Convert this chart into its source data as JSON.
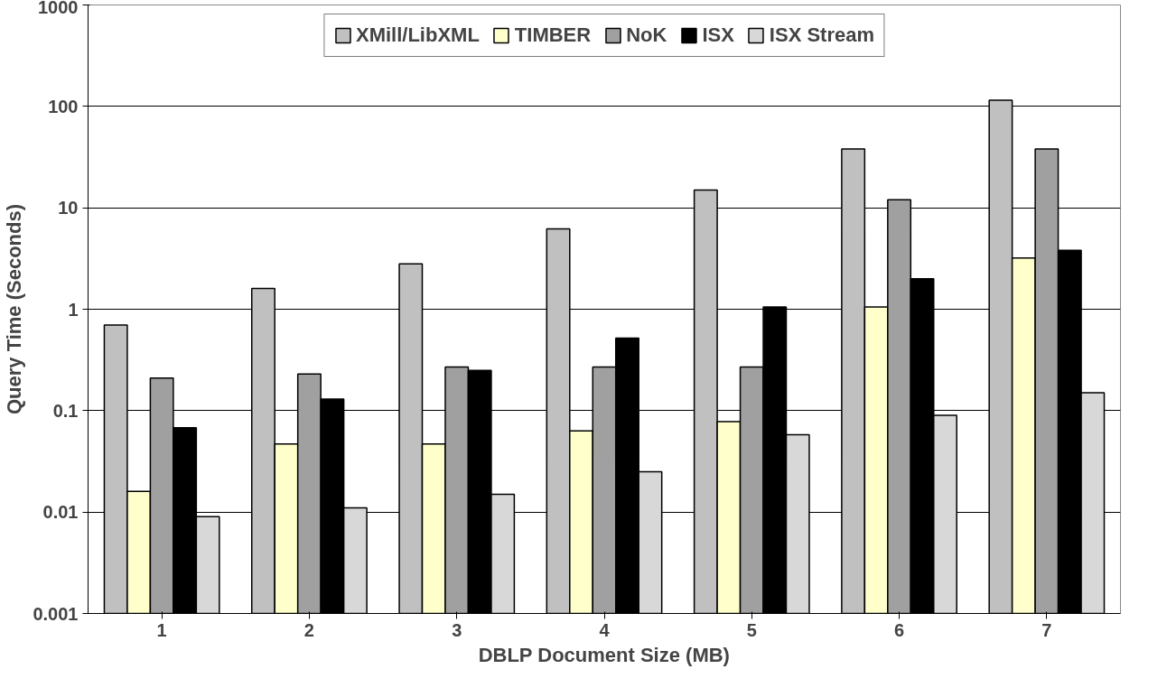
{
  "chart_data": {
    "type": "bar",
    "xlabel": "DBLP Document Size (MB)",
    "ylabel": "Query Time (Seconds)",
    "categories": [
      "1",
      "2",
      "3",
      "4",
      "5",
      "6",
      "7"
    ],
    "series": [
      {
        "name": "XMill/LibXML",
        "color": "#c0c0c0",
        "values": [
          0.7,
          1.6,
          2.8,
          6.2,
          15,
          38,
          115
        ]
      },
      {
        "name": "TIMBER",
        "color": "#ffffcc",
        "values": [
          0.016,
          0.047,
          0.047,
          0.063,
          0.078,
          1.05,
          3.2
        ]
      },
      {
        "name": "NoK",
        "color": "#a0a0a0",
        "values": [
          0.21,
          0.23,
          0.27,
          0.27,
          0.27,
          12,
          38
        ]
      },
      {
        "name": "ISX",
        "color": "#000000",
        "values": [
          0.068,
          0.13,
          0.25,
          0.52,
          1.05,
          2.0,
          3.8
        ]
      },
      {
        "name": "ISX Stream",
        "color": "#d8d8d8",
        "values": [
          0.009,
          0.011,
          0.015,
          0.025,
          0.058,
          0.09,
          0.15
        ]
      }
    ],
    "log": "y",
    "ylim": [
      0.001,
      1000
    ],
    "yticks": [
      0.001,
      0.01,
      0.1,
      1,
      10,
      100,
      1000
    ],
    "grid": "y",
    "legend": "top"
  }
}
